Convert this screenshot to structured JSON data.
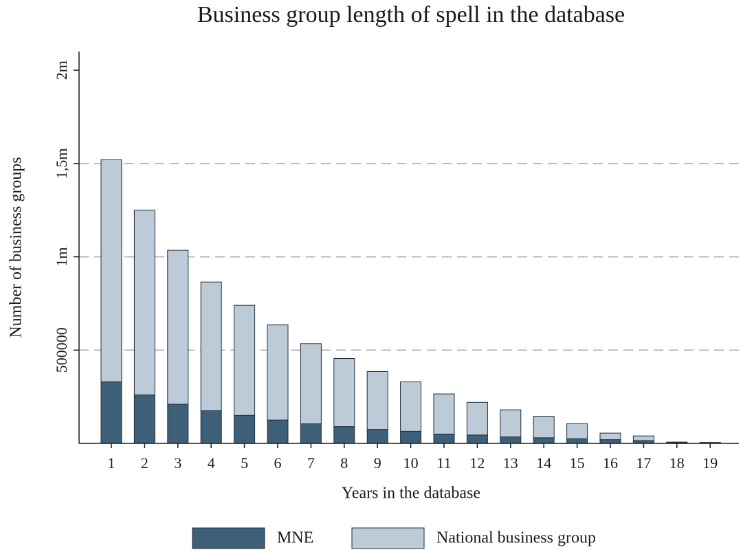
{
  "chart_data": {
    "type": "stacked_bar",
    "title": "Business group length of spell in the database",
    "x_label": "Years in the database",
    "y_label": "Number of business groups",
    "categories": [
      "1",
      "2",
      "3",
      "4",
      "5",
      "6",
      "7",
      "8",
      "9",
      "10",
      "11",
      "12",
      "13",
      "14",
      "15",
      "16",
      "17",
      "18",
      "19"
    ],
    "series": [
      {
        "name": "MNE",
        "color": "#3d5f78",
        "values": [
          330000,
          260000,
          210000,
          175000,
          150000,
          125000,
          105000,
          90000,
          75000,
          65000,
          50000,
          45000,
          35000,
          30000,
          25000,
          20000,
          15000,
          4000,
          3000
        ]
      },
      {
        "name": "National business group",
        "color": "#bccbd7",
        "values": [
          1190000,
          990000,
          825000,
          690000,
          590000,
          510000,
          430000,
          365000,
          310000,
          265000,
          215000,
          175000,
          145000,
          115000,
          80000,
          35000,
          25000,
          3000,
          2000
        ]
      }
    ],
    "ylim": [
      0,
      2100000
    ],
    "yticks": [
      500000,
      {
        "value": 1000000,
        "label": "1m"
      },
      {
        "value": 1500000,
        "label": "1,5m"
      },
      {
        "value": 2000000,
        "label": "2m"
      }
    ],
    "grid": true,
    "legend": "bottom"
  }
}
